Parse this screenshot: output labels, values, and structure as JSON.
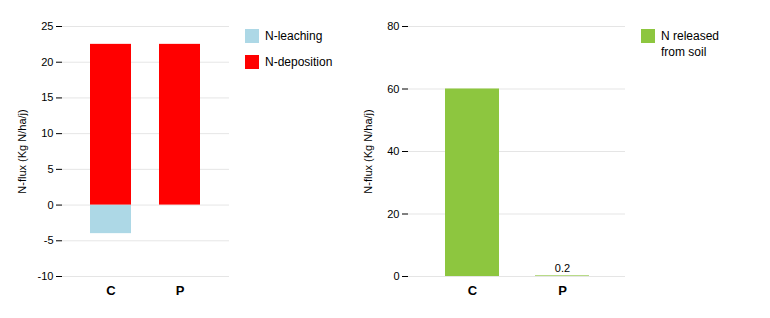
{
  "chart_data": [
    {
      "type": "bar",
      "categories": [
        "C",
        "P"
      ],
      "series": [
        {
          "name": "N-leaching",
          "color": "#ADD8E6",
          "values": [
            -4.0,
            0
          ]
        },
        {
          "name": "N-deposition",
          "color": "#FF0000",
          "values": [
            22.5,
            22.5
          ]
        }
      ],
      "ylabel": "N-flux (Kg N/ha/j)",
      "ylim": [
        -10,
        25
      ],
      "yticks": [
        -10,
        -5,
        0,
        5,
        10,
        15,
        20,
        25
      ],
      "grid": true,
      "legend": "right"
    },
    {
      "type": "bar",
      "categories": [
        "C",
        "P"
      ],
      "series": [
        {
          "name": "N released\nfrom soil",
          "color": "#8DC63F",
          "values": [
            60,
            0.2
          ]
        }
      ],
      "ylabel": "N-flux (Kg N/ha/j)",
      "ylim": [
        0,
        80
      ],
      "yticks": [
        0,
        20,
        40,
        60,
        80
      ],
      "grid": true,
      "legend": "right",
      "annotations": [
        {
          "text": "0.2",
          "category": "P"
        }
      ]
    }
  ]
}
